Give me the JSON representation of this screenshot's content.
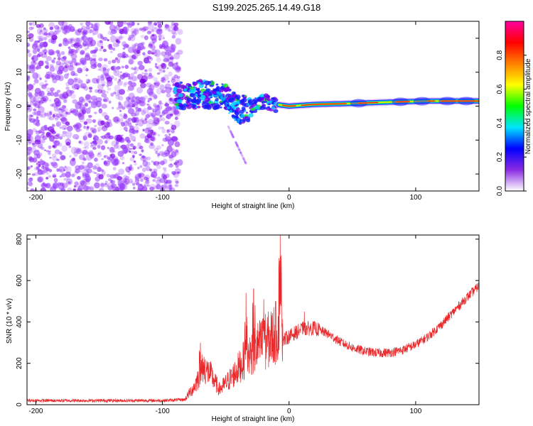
{
  "title": "S199.2025.265.14.49.G18",
  "colors": {
    "spectrum_speckle": "#9a40ff",
    "snr_line": "#e8282a",
    "frame": "#000000"
  },
  "chart_data": [
    {
      "type": "heatmap",
      "name": "spectrogram",
      "xlabel": "Height of straight line (km)",
      "ylabel": "Frequency (Hz)",
      "xlim": [
        -207,
        150
      ],
      "ylim": [
        -25,
        25
      ],
      "xticks": [
        -200,
        -100,
        0,
        100
      ],
      "yticks": [
        -20,
        -10,
        0,
        10,
        20
      ],
      "colorbar": {
        "label": "Normalized spectral amplitude",
        "range": [
          0,
          1
        ],
        "ticks": [
          "0.0",
          "0.2",
          "0.4",
          "0.6",
          "0.8"
        ],
        "stops": [
          "#ffffff",
          "#8a2be2",
          "#0000ff",
          "#00e5ff",
          "#00ff00",
          "#ffff00",
          "#ff8000",
          "#ff0000",
          "#ff00a0"
        ]
      },
      "noise_region_x": [
        -207,
        -86
      ],
      "ridge": [
        {
          "x": -90,
          "f": 3
        },
        {
          "x": -80,
          "f": 3
        },
        {
          "x": -70,
          "f": 3.5
        },
        {
          "x": -60,
          "f": 3.5
        },
        {
          "x": -50,
          "f": 2.5
        },
        {
          "x": -40,
          "f": -1
        },
        {
          "x": -30,
          "f": 0
        },
        {
          "x": -20,
          "f": 1.5
        },
        {
          "x": -10,
          "f": 0.5
        },
        {
          "x": 0,
          "f": 0
        },
        {
          "x": 20,
          "f": 0.5
        },
        {
          "x": 50,
          "f": 0.8
        },
        {
          "x": 80,
          "f": 1.2
        },
        {
          "x": 110,
          "f": 1.5
        },
        {
          "x": 150,
          "f": 1.5
        }
      ]
    },
    {
      "type": "line",
      "name": "snr",
      "xlabel": "Height of straight line (km)",
      "ylabel": "SNR (10 * v/v)",
      "xlim": [
        -207,
        150
      ],
      "ylim": [
        0,
        820
      ],
      "xticks": [
        -200,
        -100,
        0,
        100
      ],
      "yticks": [
        0,
        200,
        400,
        600,
        800
      ],
      "envelope": [
        {
          "x": -207,
          "y": 20
        },
        {
          "x": -100,
          "y": 20
        },
        {
          "x": -82,
          "y": 25
        },
        {
          "x": -75,
          "y": 70
        },
        {
          "x": -68,
          "y": 150
        },
        {
          "x": -62,
          "y": 120
        },
        {
          "x": -55,
          "y": 60
        },
        {
          "x": -45,
          "y": 110
        },
        {
          "x": -35,
          "y": 180
        },
        {
          "x": -25,
          "y": 230
        },
        {
          "x": -15,
          "y": 260
        },
        {
          "x": -8,
          "y": 300
        },
        {
          "x": 0,
          "y": 330
        },
        {
          "x": 10,
          "y": 365
        },
        {
          "x": 20,
          "y": 370
        },
        {
          "x": 30,
          "y": 345
        },
        {
          "x": 40,
          "y": 305
        },
        {
          "x": 50,
          "y": 275
        },
        {
          "x": 60,
          "y": 258
        },
        {
          "x": 70,
          "y": 250
        },
        {
          "x": 80,
          "y": 252
        },
        {
          "x": 90,
          "y": 265
        },
        {
          "x": 100,
          "y": 290
        },
        {
          "x": 110,
          "y": 330
        },
        {
          "x": 120,
          "y": 385
        },
        {
          "x": 130,
          "y": 450
        },
        {
          "x": 140,
          "y": 515
        },
        {
          "x": 150,
          "y": 575
        }
      ],
      "peaks": [
        {
          "x": -70,
          "y": 300
        },
        {
          "x": -34,
          "y": 540
        },
        {
          "x": -28,
          "y": 560
        },
        {
          "x": -20,
          "y": 510
        },
        {
          "x": -7,
          "y": 820
        },
        {
          "x": 12,
          "y": 450
        }
      ]
    }
  ]
}
